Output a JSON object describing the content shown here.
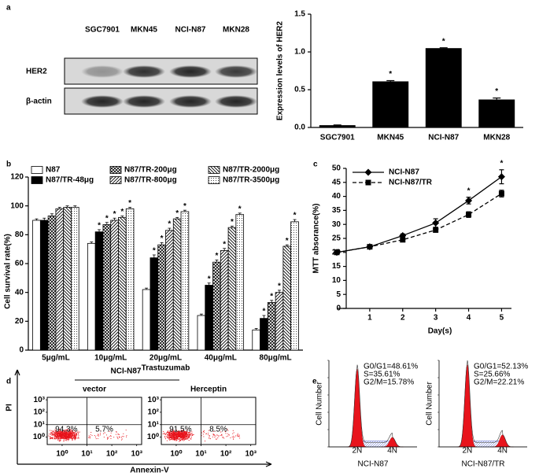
{
  "chart_data": [
    {
      "type": "blot",
      "panel": "a",
      "lanes": [
        "SGC7901",
        "MKN45",
        "NCI-N87",
        "MKN28"
      ],
      "rows": [
        "HER2",
        "β-actin"
      ]
    },
    {
      "type": "bar",
      "ylabel": "Expression levels of HER2",
      "categories": [
        "SGC7901",
        "MKN45",
        "NCI-N87",
        "MKN28"
      ],
      "values": [
        0.03,
        0.61,
        1.05,
        0.37
      ],
      "errors": [
        0.003,
        0.01,
        0.005,
        0.02
      ],
      "significance": [
        null,
        "*",
        "*",
        "*"
      ],
      "color": "#000000",
      "ylim": [
        0,
        1.5
      ],
      "yticks": [
        {
          "value": 0,
          "label": "0.0"
        },
        0.5,
        {
          "value": 1,
          "label": "1.0"
        },
        {
          "value": 1.5,
          "label": "1.5"
        }
      ]
    },
    {
      "type": "grouped-bar",
      "panel": "b",
      "xlabel": "Trastuzumab",
      "ylabel": "Cell survival rate(%)",
      "categories": [
        "5μg/mL",
        "10μg/mL",
        "20μg/mL",
        "40μg/mL",
        "80μg/mL"
      ],
      "ylim": [
        0,
        120
      ],
      "yticks": [
        0,
        20,
        40,
        60,
        80,
        100,
        120
      ],
      "series": [
        {
          "name": "N87",
          "color": "#ffffff",
          "pattern": null,
          "values": [
            90,
            74,
            42,
            24,
            14
          ],
          "errors": [
            1,
            1,
            1,
            1,
            1
          ],
          "significance": [
            null,
            null,
            null,
            null,
            null
          ]
        },
        {
          "name": "N87/TR-48μg",
          "color": "#000000",
          "pattern": null,
          "values": [
            90,
            82,
            64,
            45,
            22
          ],
          "errors": [
            1.5,
            1.5,
            2,
            1.5,
            2
          ],
          "significance": [
            null,
            "*",
            "*",
            "*",
            "*"
          ]
        },
        {
          "name": "N87/TR-200μg",
          "color": "#000000",
          "pattern": "crosshatch",
          "values": [
            93,
            87,
            73,
            61,
            33
          ],
          "errors": [
            1.5,
            1.5,
            1.5,
            1.5,
            1.5
          ],
          "significance": [
            null,
            "*",
            "*",
            "*",
            "*"
          ]
        },
        {
          "name": "N87/TR-800μg",
          "color": "#000000",
          "pattern": "diag-right",
          "values": [
            98,
            90,
            83,
            69,
            40
          ],
          "errors": [
            1,
            1.5,
            1.5,
            1.5,
            1.5
          ],
          "significance": [
            null,
            "*",
            "*",
            "*",
            "*"
          ]
        },
        {
          "name": "N87/TR-2000μg",
          "color": "#000000",
          "pattern": "diag-left",
          "values": [
            99,
            92,
            91,
            85,
            72
          ],
          "errors": [
            1,
            1,
            1,
            1,
            1
          ],
          "significance": [
            null,
            "*",
            "*",
            "*",
            "*"
          ]
        },
        {
          "name": "N87/TR-3500μg",
          "color": "#000000",
          "pattern": "dots",
          "values": [
            99,
            98,
            96,
            94,
            89
          ],
          "errors": [
            1,
            1,
            1,
            1,
            1.5
          ],
          "significance": [
            null,
            "*",
            "*",
            "*",
            "*"
          ]
        }
      ]
    },
    {
      "type": "line",
      "panel": "c",
      "xlabel": "Day(s)",
      "ylabel": "MTT absorance(%)",
      "x": [
        0,
        1,
        2,
        3,
        4,
        5
      ],
      "xlim": [
        0,
        5.3
      ],
      "xticks": [
        1,
        2,
        3,
        4,
        5
      ],
      "ylim": [
        0,
        50
      ],
      "yticks": [
        0,
        5,
        10,
        15,
        20,
        25,
        30,
        35,
        40,
        45,
        50
      ],
      "significance": [
        null,
        null,
        null,
        null,
        "*",
        "*"
      ],
      "series": [
        {
          "name": "NCI-N87",
          "color": "#000000",
          "marker": "diamond",
          "linestyle": "solid",
          "values": [
            20,
            22,
            26,
            30.5,
            38.5,
            47
          ],
          "errors": [
            0.5,
            0.5,
            0.6,
            1.5,
            1.2,
            2.5
          ]
        },
        {
          "name": "NCI-N87/TR",
          "color": "#000000",
          "marker": "square",
          "linestyle": "dashed",
          "values": [
            20,
            22,
            24.5,
            28,
            33.5,
            41
          ],
          "errors": [
            0.5,
            0.5,
            0.6,
            0.8,
            1,
            1.2
          ]
        }
      ]
    },
    {
      "type": "flow",
      "panel": "d",
      "title": "NCI-N87",
      "xlabel": "Annexin-V",
      "ylabel": "PI",
      "xlim": [
        -0.6,
        3.2
      ],
      "ylim": [
        -0.6,
        3.2
      ],
      "gate": {
        "x": 1,
        "y": 1
      },
      "color": "#e8141c",
      "xticks": [
        {
          "value": 0,
          "label": "10⁰"
        },
        {
          "value": 1,
          "label": "10¹"
        },
        {
          "value": 2,
          "label": "10²"
        },
        {
          "value": 3,
          "label": "10³"
        }
      ],
      "yticks": [
        {
          "value": 0,
          "label": "10⁰"
        },
        {
          "value": 1,
          "label": "10¹"
        },
        {
          "value": 2,
          "label": "10²"
        },
        {
          "value": 3,
          "label": "10³"
        }
      ],
      "plots": [
        {
          "name": "vector",
          "quadrants": [
            "94.3%",
            "5.7%"
          ]
        },
        {
          "name": "Herceptin",
          "quadrants": [
            "91.5%",
            "8.5%"
          ]
        }
      ]
    },
    {
      "type": "cell-cycle",
      "panel": "e",
      "ylabel": "Cell Number",
      "peak_labels": [
        "2N",
        "4N"
      ],
      "color": "#e8141c",
      "plots": [
        {
          "name": "NCI-N87",
          "stats": [
            "G0/G1=48.61%",
            "S=35.61%",
            "G2/M=15.78%"
          ]
        },
        {
          "name": "NCI-N87/TR",
          "stats": [
            "G0/G1=52.13%",
            "S=25.66%",
            "G2/M=22.21%"
          ]
        }
      ]
    }
  ]
}
